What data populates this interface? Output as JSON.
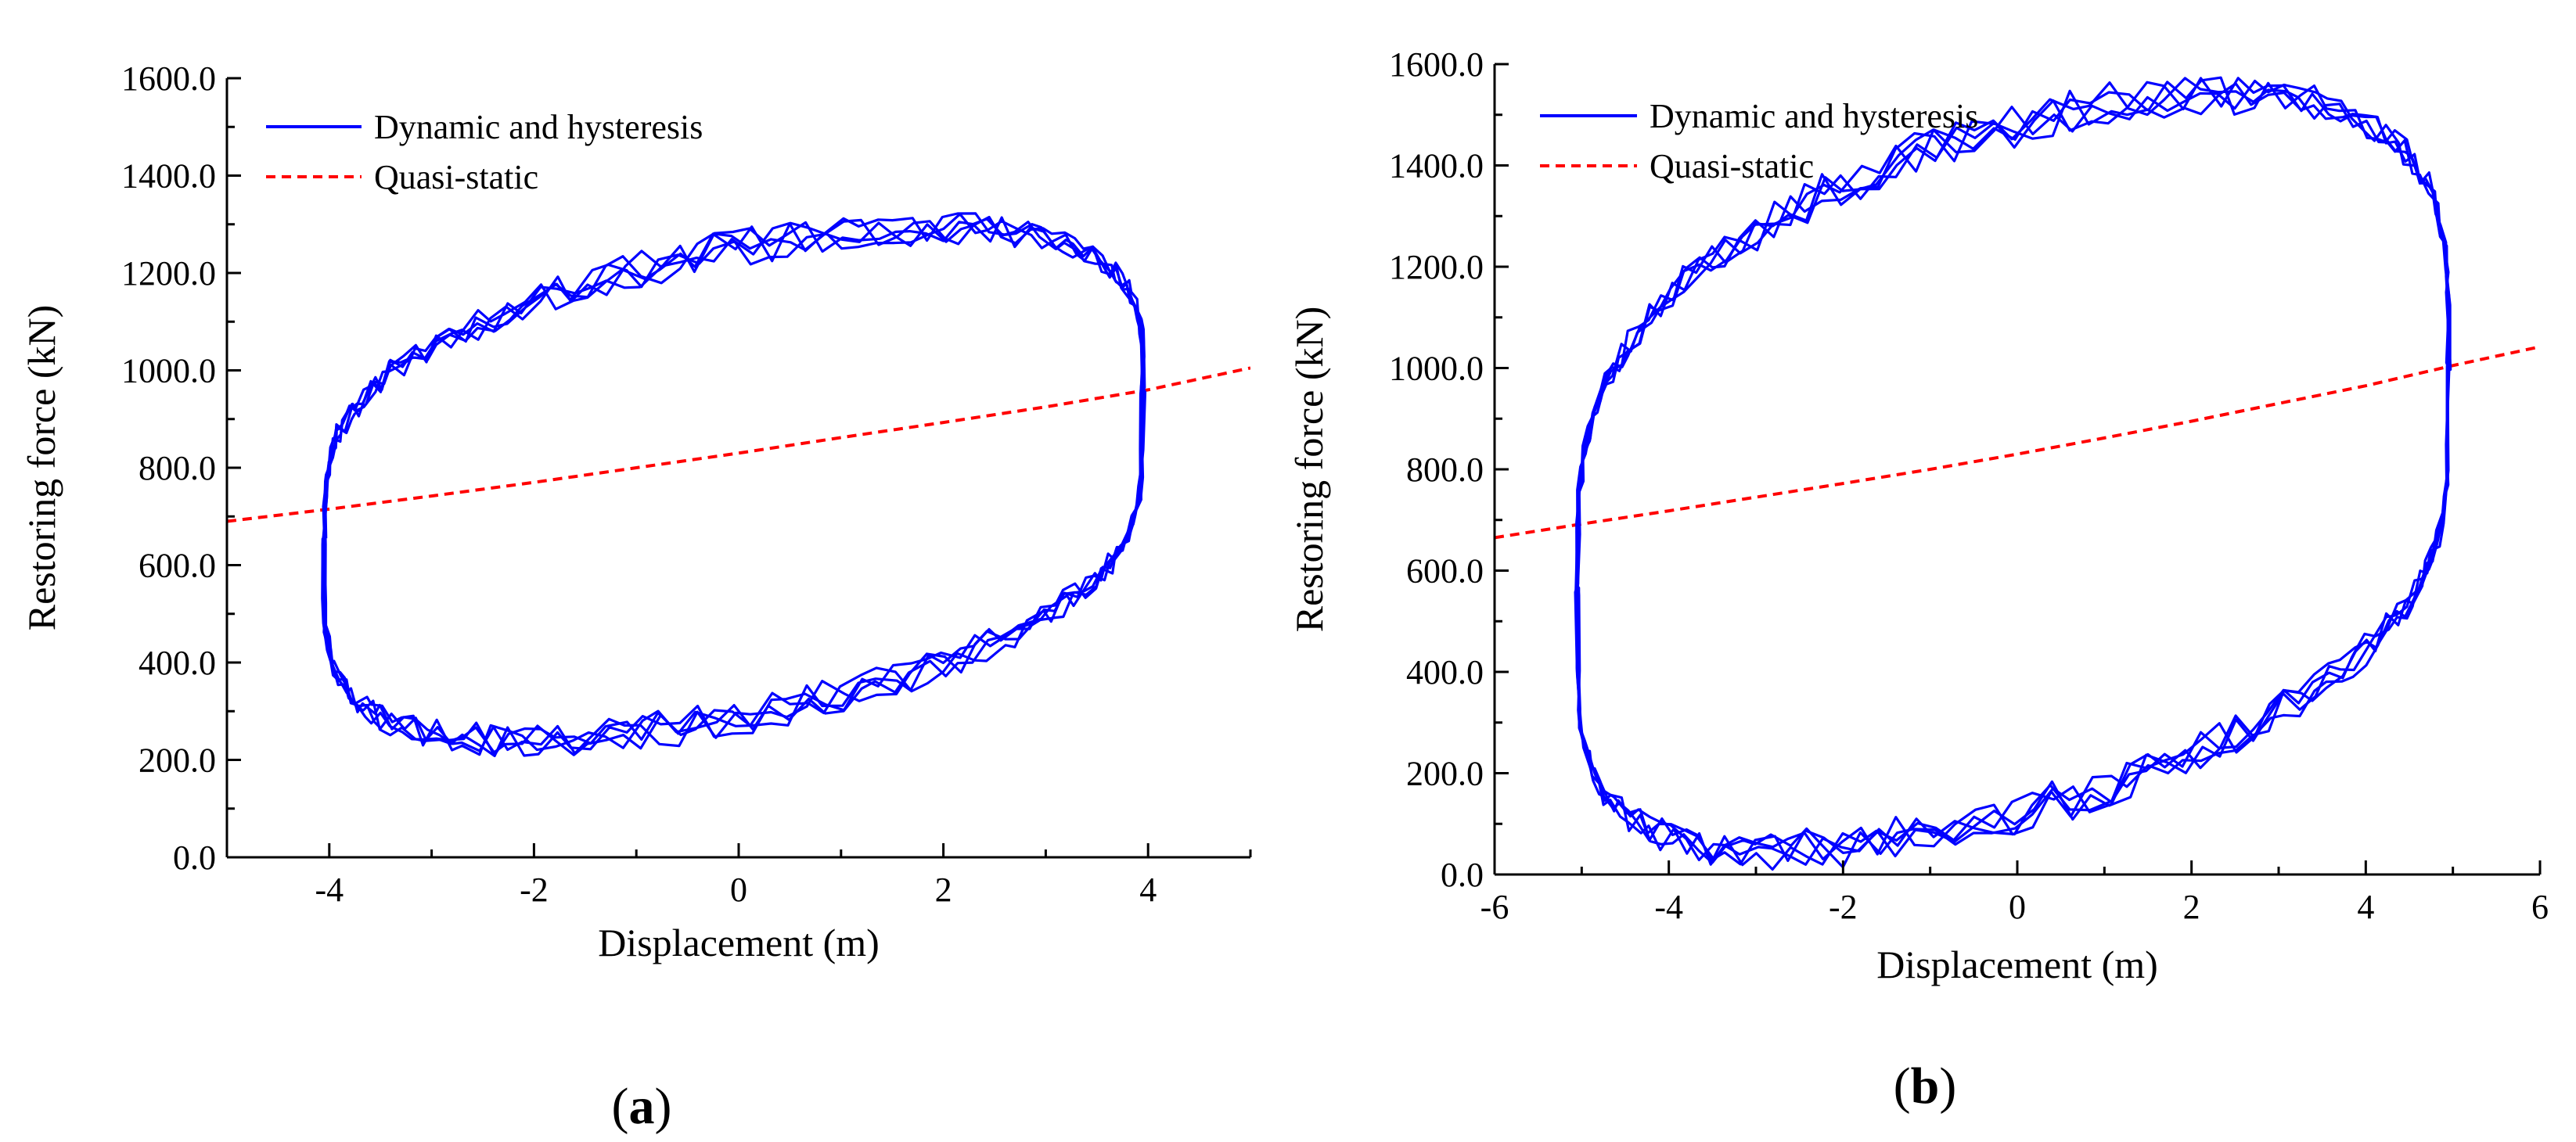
{
  "chart_data": [
    {
      "type": "line",
      "panel": "a",
      "caption_letter": "a",
      "xlabel": "Displacement (m)",
      "ylabel": "Restoring force (kN)",
      "xlim": [
        -5,
        5
      ],
      "ylim": [
        0,
        1600
      ],
      "xticks": [
        -4,
        -2,
        0,
        2,
        4
      ],
      "xtick_labels": [
        "-4",
        "-2",
        "0",
        "2",
        "4"
      ],
      "yticks": [
        0,
        200,
        400,
        600,
        800,
        1000,
        1200,
        1400,
        1600
      ],
      "ytick_labels": [
        "0.0",
        "200.0",
        "400.0",
        "600.0",
        "800.0",
        "1000.0",
        "1200.0",
        "1400.0",
        "1600.0"
      ],
      "legend": [
        "Dynamic and hysteresis",
        "Quasi-static"
      ],
      "series": [
        {
          "name": "Dynamic and hysteresis",
          "color": "#0000ff",
          "style": "solid",
          "loop": {
            "x_min": -4.05,
            "x_max": 3.95,
            "upper_peak": 1250,
            "upper_peak_x": 1.6,
            "lower_min": 285,
            "lower_min_x": -1.0,
            "endpoint_left": 650,
            "endpoint_right": 960,
            "noise": 40
          }
        },
        {
          "name": "Quasi-static",
          "color": "#ff0000",
          "style": "dashed",
          "x": [
            -5,
            -4,
            -3,
            -2,
            -1,
            0,
            1,
            2,
            3,
            4,
            5
          ],
          "y": [
            690,
            715,
            742,
            770,
            800,
            830,
            862,
            893,
            925,
            960,
            1005
          ]
        }
      ]
    },
    {
      "type": "line",
      "panel": "b",
      "caption_letter": "b",
      "xlabel": "Displacement (m)",
      "ylabel": "Restoring force (kN)",
      "xlim": [
        -6,
        6
      ],
      "ylim": [
        0,
        1600
      ],
      "xticks": [
        -6,
        -4,
        -2,
        0,
        2,
        4,
        6
      ],
      "xtick_labels": [
        "-6",
        "-4",
        "-2",
        "0",
        "2",
        "4",
        "6"
      ],
      "yticks": [
        0,
        200,
        400,
        600,
        800,
        1000,
        1200,
        1400,
        1600
      ],
      "ytick_labels": [
        "0.0",
        "200.0",
        "400.0",
        "600.0",
        "800.0",
        "1000.0",
        "1200.0",
        "1400.0",
        "1600.0"
      ],
      "legend": [
        "Dynamic and hysteresis",
        "Quasi-static"
      ],
      "series": [
        {
          "name": "Dynamic and hysteresis",
          "color": "#0000ff",
          "style": "solid",
          "loop": {
            "x_min": -5.05,
            "x_max": 4.95,
            "upper_peak": 1480,
            "upper_peak_x": 2.6,
            "lower_min": 120,
            "lower_min_x": -0.8,
            "endpoint_left": 560,
            "endpoint_right": 1010,
            "noise": 45
          }
        },
        {
          "name": "Quasi-static",
          "color": "#ff0000",
          "style": "dashed",
          "x": [
            -6,
            -5,
            -4,
            -3,
            -2,
            -1,
            0,
            1,
            2,
            3,
            4,
            5,
            6
          ],
          "y": [
            665,
            692,
            718,
            745,
            772,
            800,
            830,
            862,
            895,
            930,
            965,
            1005,
            1042
          ]
        }
      ]
    }
  ]
}
